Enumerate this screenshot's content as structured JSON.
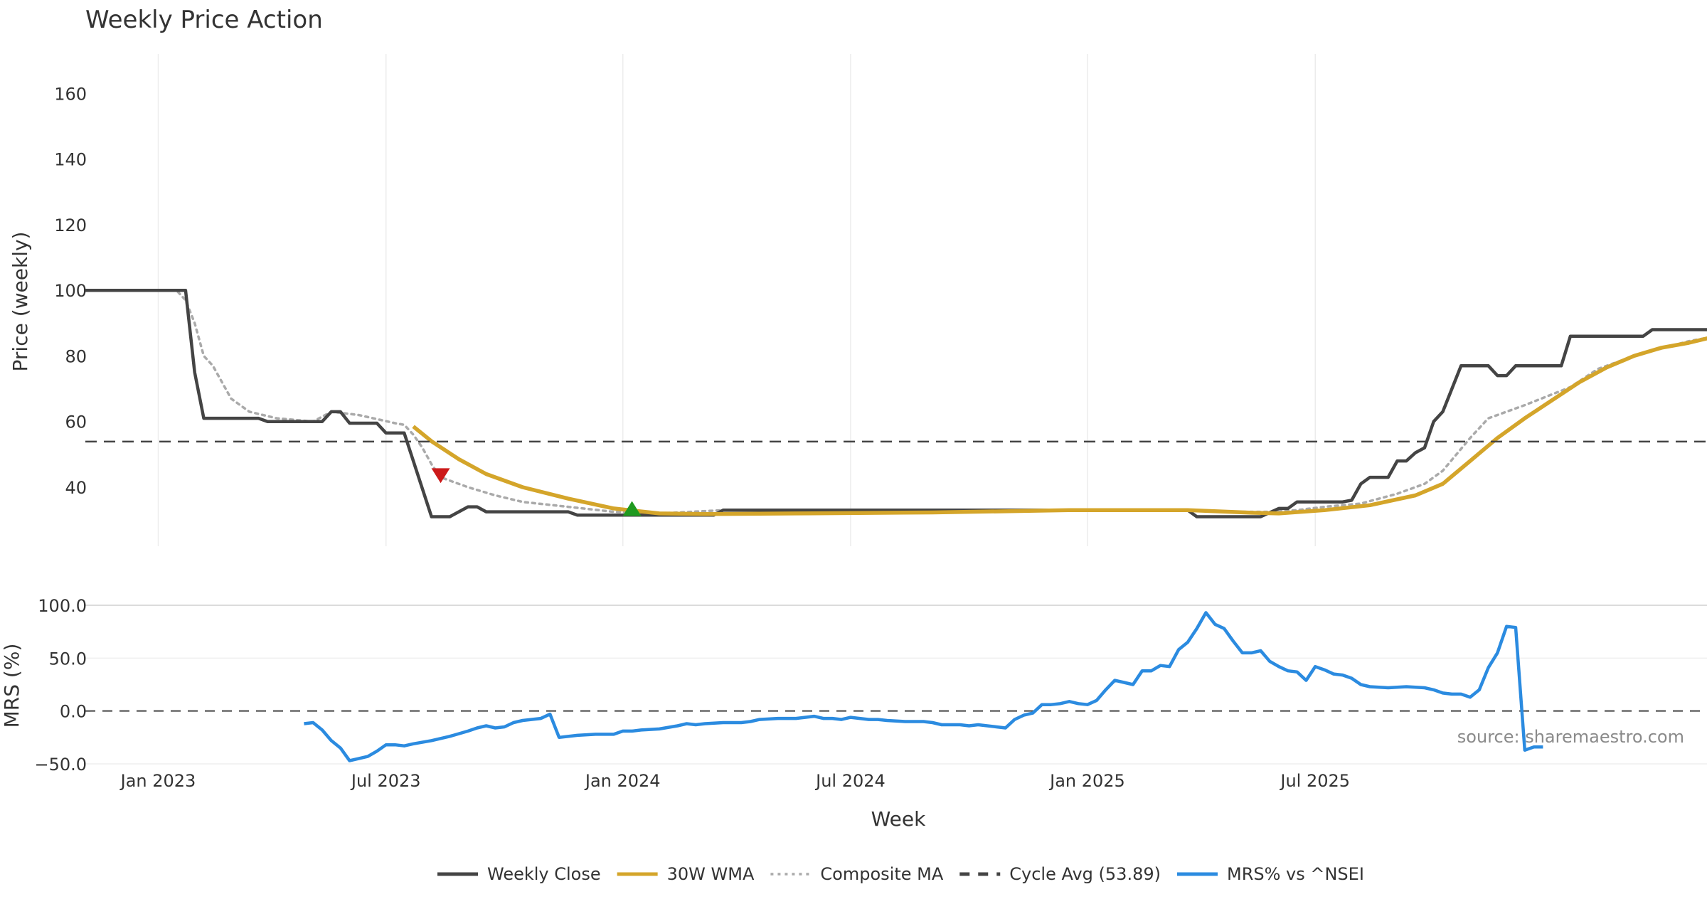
{
  "chart_data": [
    {
      "type": "line",
      "title": "Weekly Price Action",
      "xlabel": "",
      "ylabel": "Price (weekly)",
      "ylim": [
        22,
        172
      ],
      "yticks": [
        40,
        60,
        80,
        100,
        120,
        140,
        160
      ],
      "x_range_weeks": [
        -8,
        170
      ],
      "x_start_date": "2022-11-07",
      "grid": "vertical",
      "series": [
        {
          "name": "Weekly Close",
          "color": "#444444",
          "style": "solid",
          "points": [
            [
              -8,
              100
            ],
            [
              2,
              100
            ],
            [
              3,
              100
            ],
            [
              4,
              75
            ],
            [
              5,
              61
            ],
            [
              11,
              61
            ],
            [
              12,
              60
            ],
            [
              18,
              60
            ],
            [
              19,
              63
            ],
            [
              20,
              63
            ],
            [
              21,
              59.5
            ],
            [
              24,
              59.5
            ],
            [
              25,
              56.5
            ],
            [
              27,
              56.5
            ],
            [
              28,
              48
            ],
            [
              30,
              31
            ],
            [
              32,
              31
            ],
            [
              34,
              34
            ],
            [
              35,
              34
            ],
            [
              36,
              32.5
            ],
            [
              45,
              32.5
            ],
            [
              46,
              31.5
            ],
            [
              61,
              31.5
            ],
            [
              62,
              33
            ],
            [
              113,
              33
            ],
            [
              114,
              31
            ],
            [
              121,
              31
            ],
            [
              123,
              33.5
            ],
            [
              124,
              33.5
            ],
            [
              125,
              35.5
            ],
            [
              130,
              35.5
            ],
            [
              131,
              36
            ],
            [
              132,
              41
            ],
            [
              133,
              43
            ],
            [
              135,
              43
            ],
            [
              136,
              48
            ],
            [
              137,
              48
            ],
            [
              138,
              50.5
            ],
            [
              139,
              52
            ],
            [
              140,
              60
            ],
            [
              141,
              63
            ],
            [
              143,
              77
            ],
            [
              146,
              77
            ],
            [
              147,
              74
            ],
            [
              148,
              74
            ],
            [
              149,
              77
            ],
            [
              154,
              77
            ],
            [
              155,
              86
            ],
            [
              163,
              86
            ],
            [
              164,
              88
            ],
            [
              172,
              88
            ],
            [
              173,
              97
            ],
            [
              174,
              117
            ],
            [
              175,
              129
            ],
            [
              176,
              157
            ],
            [
              177,
              165
            ],
            [
              178,
              58
            ],
            [
              179,
              60
            ],
            [
              180,
              60
            ]
          ]
        },
        {
          "name": "30W WMA",
          "color": "#d4a52a",
          "style": "solid",
          "points": [
            [
              28,
              58.5
            ],
            [
              30,
              54
            ],
            [
              33,
              48.5
            ],
            [
              36,
              44
            ],
            [
              40,
              40
            ],
            [
              45,
              36.5
            ],
            [
              50,
              33.5
            ],
            [
              55,
              32
            ],
            [
              60,
              31.8
            ],
            [
              70,
              32
            ],
            [
              85,
              32.3
            ],
            [
              100,
              33
            ],
            [
              113,
              33
            ],
            [
              120,
              32.2
            ],
            [
              123,
              32
            ],
            [
              128,
              33
            ],
            [
              133,
              34.5
            ],
            [
              138,
              37.5
            ],
            [
              141,
              41
            ],
            [
              144,
              48
            ],
            [
              147,
              55
            ],
            [
              150,
              61
            ],
            [
              153,
              66.5
            ],
            [
              156,
              72
            ],
            [
              159,
              76.5
            ],
            [
              162,
              80
            ],
            [
              165,
              82.5
            ],
            [
              168,
              84
            ],
            [
              171,
              86
            ],
            [
              173,
              90
            ],
            [
              175,
              97
            ],
            [
              176,
              100.5
            ],
            [
              178,
              97
            ],
            [
              180,
              93
            ]
          ]
        },
        {
          "name": "Composite MA",
          "color": "#aaaaaa",
          "style": "dotted",
          "points": [
            [
              -4,
              100
            ],
            [
              2,
              100
            ],
            [
              3,
              97
            ],
            [
              4,
              90
            ],
            [
              5,
              80
            ],
            [
              6,
              77
            ],
            [
              7,
              72
            ],
            [
              8,
              67
            ],
            [
              10,
              63
            ],
            [
              13,
              61
            ],
            [
              17,
              60
            ],
            [
              19,
              63
            ],
            [
              22,
              62
            ],
            [
              26,
              59.5
            ],
            [
              27,
              59
            ],
            [
              28,
              56
            ],
            [
              29,
              52
            ],
            [
              30,
              47
            ],
            [
              31,
              43
            ],
            [
              34,
              40
            ],
            [
              37,
              37.5
            ],
            [
              40,
              35.5
            ],
            [
              45,
              34
            ],
            [
              50,
              32.5
            ],
            [
              55,
              32
            ],
            [
              62,
              33
            ],
            [
              70,
              33
            ],
            [
              90,
              33
            ],
            [
              100,
              33
            ],
            [
              113,
              33
            ],
            [
              118,
              32.5
            ],
            [
              122,
              32.5
            ],
            [
              125,
              33
            ],
            [
              128,
              34
            ],
            [
              132,
              35
            ],
            [
              136,
              38
            ],
            [
              139,
              41
            ],
            [
              141,
              45
            ],
            [
              144,
              55
            ],
            [
              146,
              61
            ],
            [
              150,
              65
            ],
            [
              155,
              70.5
            ],
            [
              158,
              76
            ],
            [
              162,
              80
            ],
            [
              168,
              84.5
            ],
            [
              171,
              86
            ],
            [
              173,
              92
            ],
            [
              175,
              104
            ],
            [
              176,
              114
            ],
            [
              178,
              103
            ],
            [
              180,
              92
            ]
          ]
        },
        {
          "name": "Cycle Avg (53.89)",
          "color": "#444444",
          "style": "dashed",
          "constant": 53.89
        }
      ],
      "markers": [
        {
          "type": "sell",
          "shape": "triangle-down",
          "color": "#cc1a1a",
          "x": 31,
          "y": 43.5
        },
        {
          "type": "buy",
          "shape": "triangle-up",
          "color": "#1f9a1f",
          "x": 52,
          "y": 33.5
        }
      ]
    },
    {
      "type": "line",
      "title": "",
      "xlabel": "Week",
      "ylabel": "MRS (%)",
      "ylim": [
        -50,
        100
      ],
      "yticks": [
        -50,
        0,
        50,
        100
      ],
      "ytick_labels": [
        "−50.0",
        "0.0",
        "50.0",
        "100.0"
      ],
      "zero_line": 0,
      "x_ticks": [
        {
          "label": "Jan 2023",
          "week": 0
        },
        {
          "label": "Jul 2023",
          "week": 25
        },
        {
          "label": "Jan 2024",
          "week": 51
        },
        {
          "label": "Jul 2024",
          "week": 76
        },
        {
          "label": "Jan 2025",
          "week": 102
        },
        {
          "label": "Jul 2025",
          "week": 127
        }
      ],
      "series": [
        {
          "name": "MRS% vs ^NSEI",
          "color": "#2b8be0",
          "style": "solid",
          "points": [
            [
              16,
              -12
            ],
            [
              17,
              -11
            ],
            [
              18,
              -18
            ],
            [
              19,
              -28
            ],
            [
              20,
              -35
            ],
            [
              21,
              -47
            ],
            [
              22,
              -45
            ],
            [
              23,
              -43
            ],
            [
              24,
              -38
            ],
            [
              25,
              -32
            ],
            [
              26,
              -32
            ],
            [
              27,
              -33
            ],
            [
              28,
              -31
            ],
            [
              30,
              -28
            ],
            [
              32,
              -24
            ],
            [
              34,
              -19
            ],
            [
              35,
              -16
            ],
            [
              36,
              -14
            ],
            [
              37,
              -16
            ],
            [
              38,
              -15
            ],
            [
              39,
              -11
            ],
            [
              40,
              -9
            ],
            [
              42,
              -7
            ],
            [
              43,
              -3
            ],
            [
              44,
              -25
            ],
            [
              46,
              -23
            ],
            [
              48,
              -22
            ],
            [
              50,
              -22
            ],
            [
              51,
              -19
            ],
            [
              52,
              -19
            ],
            [
              53,
              -18
            ],
            [
              55,
              -17
            ],
            [
              57,
              -14
            ],
            [
              58,
              -12
            ],
            [
              59,
              -13
            ],
            [
              60,
              -12
            ],
            [
              62,
              -11
            ],
            [
              64,
              -11
            ],
            [
              65,
              -10
            ],
            [
              66,
              -8
            ],
            [
              68,
              -7
            ],
            [
              70,
              -7
            ],
            [
              71,
              -6
            ],
            [
              72,
              -5
            ],
            [
              73,
              -7
            ],
            [
              74,
              -7
            ],
            [
              75,
              -8
            ],
            [
              76,
              -6
            ],
            [
              77,
              -7
            ],
            [
              78,
              -8
            ],
            [
              79,
              -8
            ],
            [
              80,
              -9
            ],
            [
              82,
              -10
            ],
            [
              84,
              -10
            ],
            [
              85,
              -11
            ],
            [
              86,
              -13
            ],
            [
              88,
              -13
            ],
            [
              89,
              -14
            ],
            [
              90,
              -13
            ],
            [
              92,
              -15
            ],
            [
              93,
              -16
            ],
            [
              94,
              -8
            ],
            [
              95,
              -4
            ],
            [
              96,
              -2
            ],
            [
              97,
              6
            ],
            [
              98,
              6
            ],
            [
              99,
              7
            ],
            [
              100,
              9
            ],
            [
              101,
              7
            ],
            [
              102,
              6
            ],
            [
              103,
              10
            ],
            [
              104,
              20
            ],
            [
              105,
              29
            ],
            [
              106,
              27
            ],
            [
              107,
              25
            ],
            [
              108,
              38
            ],
            [
              109,
              38
            ],
            [
              110,
              43
            ],
            [
              111,
              42
            ],
            [
              112,
              58
            ],
            [
              113,
              65
            ],
            [
              114,
              78
            ],
            [
              115,
              93
            ],
            [
              116,
              82
            ],
            [
              117,
              78
            ],
            [
              118,
              66
            ],
            [
              119,
              55
            ],
            [
              120,
              55
            ],
            [
              121,
              57
            ],
            [
              122,
              47
            ],
            [
              123,
              42
            ],
            [
              124,
              38
            ],
            [
              125,
              37
            ],
            [
              126,
              29
            ],
            [
              127,
              42
            ],
            [
              128,
              39
            ],
            [
              129,
              35
            ],
            [
              130,
              34
            ],
            [
              131,
              31
            ],
            [
              132,
              25
            ],
            [
              133,
              23
            ],
            [
              135,
              22
            ],
            [
              137,
              23
            ],
            [
              139,
              22
            ],
            [
              140,
              20
            ],
            [
              141,
              17
            ],
            [
              142,
              16
            ],
            [
              143,
              16
            ],
            [
              144,
              13
            ],
            [
              145,
              20
            ],
            [
              146,
              41
            ],
            [
              147,
              55
            ],
            [
              148,
              80
            ],
            [
              149,
              79
            ],
            [
              150,
              -37
            ],
            [
              151,
              -34
            ],
            [
              152,
              -34
            ]
          ]
        }
      ],
      "source": "source: sharemaestro.com"
    }
  ],
  "legend": [
    {
      "label": "Weekly Close",
      "style": "solid",
      "color": "#444444"
    },
    {
      "label": "30W WMA",
      "style": "solid",
      "color": "#d4a52a"
    },
    {
      "label": "Composite MA",
      "style": "dotted",
      "color": "#aaaaaa"
    },
    {
      "label": "Cycle Avg (53.89)",
      "style": "dashed",
      "color": "#444444"
    },
    {
      "label": "MRS% vs ^NSEI",
      "style": "solid",
      "color": "#2b8be0"
    }
  ]
}
